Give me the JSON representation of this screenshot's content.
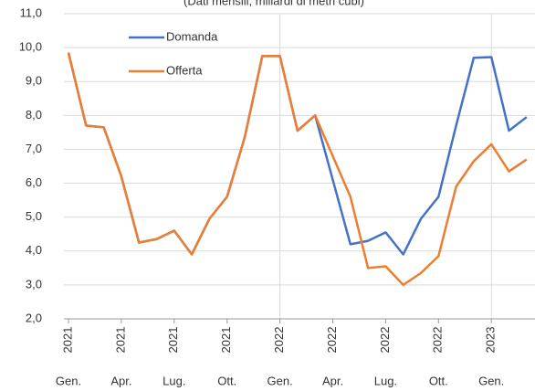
{
  "chart_data": {
    "type": "line",
    "subtitle": "(Dati mensili, miliardi di metri cubi)",
    "categories": [
      "Gen.",
      null,
      null,
      "Apr.",
      null,
      null,
      "Lug.",
      null,
      null,
      "Ott.",
      null,
      null,
      "Gen.",
      null,
      null,
      "Apr.",
      null,
      null,
      "Lug.",
      null,
      null,
      "Ott.",
      null,
      null,
      "Gen.",
      null,
      null
    ],
    "category_years": [
      "2021",
      null,
      null,
      "2021",
      null,
      null,
      "2021",
      null,
      null,
      "2021",
      null,
      null,
      "2022",
      null,
      null,
      "2022",
      null,
      null,
      "2022",
      null,
      null,
      "2022",
      null,
      null,
      "2023",
      null,
      null
    ],
    "series": [
      {
        "name": "Domanda",
        "color": "#4472c4",
        "values": [
          9.85,
          7.7,
          7.65,
          6.2,
          4.25,
          4.35,
          4.6,
          3.9,
          4.95,
          5.6,
          7.35,
          9.75,
          9.75,
          7.55,
          8.0,
          6.1,
          4.2,
          4.3,
          4.55,
          3.9,
          4.95,
          5.6,
          7.7,
          9.7,
          9.72,
          7.55,
          7.95
        ]
      },
      {
        "name": "Offerta",
        "color": "#ed7d31",
        "values": [
          9.85,
          7.7,
          7.65,
          6.2,
          4.25,
          4.35,
          4.6,
          3.9,
          4.95,
          5.6,
          7.35,
          9.75,
          9.75,
          7.55,
          8.0,
          6.8,
          5.6,
          3.5,
          3.55,
          3.0,
          3.35,
          3.85,
          5.9,
          6.65,
          7.15,
          6.35,
          6.7
        ]
      }
    ],
    "ylim": [
      2,
      11
    ],
    "yticks": [
      {
        "value": 2,
        "label": "2,0"
      },
      {
        "value": 3,
        "label": "3,0"
      },
      {
        "value": 4,
        "label": "4,0"
      },
      {
        "value": 5,
        "label": "5,0"
      },
      {
        "value": 6,
        "label": "6,0"
      },
      {
        "value": 7,
        "label": "7,0"
      },
      {
        "value": 8,
        "label": "8,0"
      },
      {
        "value": 9,
        "label": "9,0"
      },
      {
        "value": 10,
        "label": "10,0"
      },
      {
        "value": 11,
        "label": "11,0"
      }
    ],
    "grid": true,
    "legend": "upper left"
  }
}
